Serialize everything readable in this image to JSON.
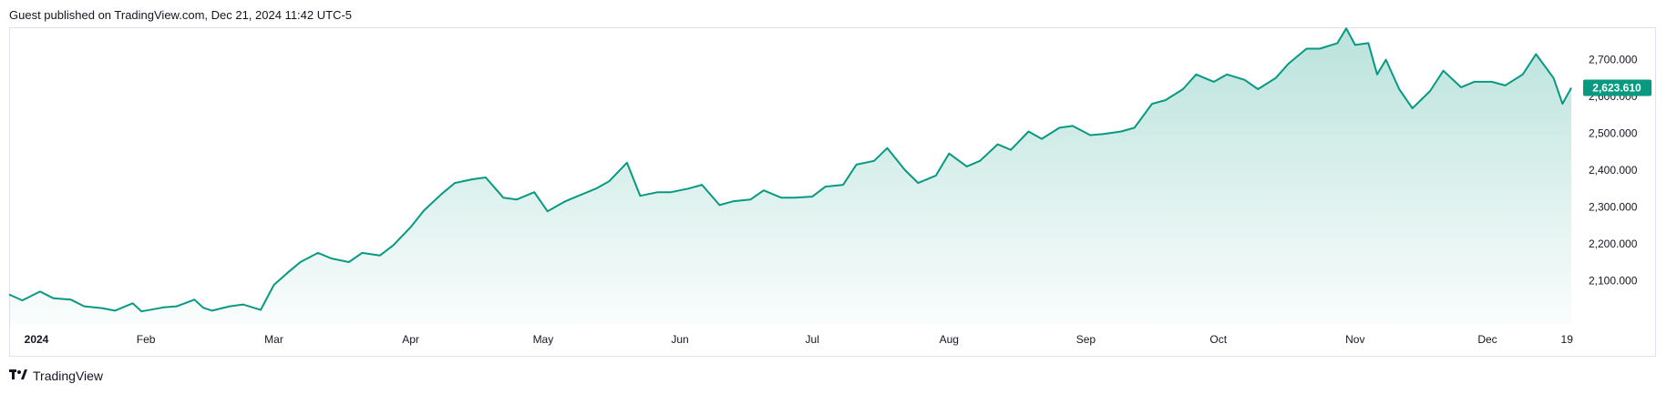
{
  "header": {
    "published_text": "Guest published on TradingView.com, Dec 21, 2024 11:42 UTC-5"
  },
  "footer": {
    "brand": "TradingView",
    "logo_icon": "tradingview-logo-icon"
  },
  "colors": {
    "line": "#089981",
    "area_top": "#089981",
    "price_tag_bg": "#089981",
    "frame": "#e0e3eb"
  },
  "last_price_label": "2,623.610",
  "chart_data": {
    "type": "area",
    "x_ticks": [
      {
        "label": "2024",
        "date": "2024-01-01",
        "bold": true
      },
      {
        "label": "Feb",
        "date": "2024-02-01"
      },
      {
        "label": "Mar",
        "date": "2024-03-01"
      },
      {
        "label": "Apr",
        "date": "2024-04-01"
      },
      {
        "label": "May",
        "date": "2024-05-01"
      },
      {
        "label": "Jun",
        "date": "2024-06-01"
      },
      {
        "label": "Jul",
        "date": "2024-07-01"
      },
      {
        "label": "Aug",
        "date": "2024-08-01"
      },
      {
        "label": "Sep",
        "date": "2024-09-01"
      },
      {
        "label": "Oct",
        "date": "2024-10-01"
      },
      {
        "label": "Nov",
        "date": "2024-11-01"
      },
      {
        "label": "Dec",
        "date": "2024-12-01"
      },
      {
        "label": "19",
        "date": "2024-12-19"
      }
    ],
    "y_ticks": [
      {
        "label": "2,100.000",
        "value": 2100
      },
      {
        "label": "2,200.000",
        "value": 2200
      },
      {
        "label": "2,300.000",
        "value": 2300
      },
      {
        "label": "2,400.000",
        "value": 2400
      },
      {
        "label": "2,500.000",
        "value": 2500
      },
      {
        "label": "2,600.000",
        "value": 2600
      },
      {
        "label": "2,700.000",
        "value": 2700
      }
    ],
    "x_range": [
      "2024-01-01",
      "2024-12-20"
    ],
    "ylim": [
      1982,
      2788
    ],
    "last_value": 2623.61,
    "grid": false,
    "points": [
      [
        "2024-01-01",
        2062
      ],
      [
        "2024-01-04",
        2046
      ],
      [
        "2024-01-08",
        2070
      ],
      [
        "2024-01-11",
        2052
      ],
      [
        "2024-01-15",
        2048
      ],
      [
        "2024-01-18",
        2030
      ],
      [
        "2024-01-22",
        2025
      ],
      [
        "2024-01-25",
        2018
      ],
      [
        "2024-01-29",
        2038
      ],
      [
        "2024-01-31",
        2016
      ],
      [
        "2024-02-05",
        2027
      ],
      [
        "2024-02-08",
        2030
      ],
      [
        "2024-02-12",
        2048
      ],
      [
        "2024-02-14",
        2026
      ],
      [
        "2024-02-16",
        2018
      ],
      [
        "2024-02-20",
        2030
      ],
      [
        "2024-02-23",
        2035
      ],
      [
        "2024-02-27",
        2020
      ],
      [
        "2024-03-01",
        2088
      ],
      [
        "2024-03-04",
        2120
      ],
      [
        "2024-03-07",
        2150
      ],
      [
        "2024-03-11",
        2175
      ],
      [
        "2024-03-14",
        2160
      ],
      [
        "2024-03-18",
        2150
      ],
      [
        "2024-03-21",
        2175
      ],
      [
        "2024-03-25",
        2168
      ],
      [
        "2024-03-28",
        2195
      ],
      [
        "2024-04-01",
        2245
      ],
      [
        "2024-04-04",
        2290
      ],
      [
        "2024-04-08",
        2335
      ],
      [
        "2024-04-11",
        2365
      ],
      [
        "2024-04-15",
        2375
      ],
      [
        "2024-04-18",
        2380
      ],
      [
        "2024-04-22",
        2325
      ],
      [
        "2024-04-25",
        2320
      ],
      [
        "2024-04-29",
        2340
      ],
      [
        "2024-05-02",
        2288
      ],
      [
        "2024-05-06",
        2315
      ],
      [
        "2024-05-09",
        2330
      ],
      [
        "2024-05-13",
        2350
      ],
      [
        "2024-05-16",
        2370
      ],
      [
        "2024-05-20",
        2420
      ],
      [
        "2024-05-23",
        2330
      ],
      [
        "2024-05-27",
        2340
      ],
      [
        "2024-05-30",
        2340
      ],
      [
        "2024-06-03",
        2350
      ],
      [
        "2024-06-06",
        2360
      ],
      [
        "2024-06-10",
        2305
      ],
      [
        "2024-06-13",
        2315
      ],
      [
        "2024-06-17",
        2320
      ],
      [
        "2024-06-20",
        2345
      ],
      [
        "2024-06-24",
        2325
      ],
      [
        "2024-06-27",
        2325
      ],
      [
        "2024-07-01",
        2328
      ],
      [
        "2024-07-04",
        2355
      ],
      [
        "2024-07-08",
        2360
      ],
      [
        "2024-07-11",
        2415
      ],
      [
        "2024-07-15",
        2425
      ],
      [
        "2024-07-18",
        2460
      ],
      [
        "2024-07-22",
        2400
      ],
      [
        "2024-07-25",
        2365
      ],
      [
        "2024-07-29",
        2385
      ],
      [
        "2024-08-01",
        2445
      ],
      [
        "2024-08-05",
        2410
      ],
      [
        "2024-08-08",
        2425
      ],
      [
        "2024-08-12",
        2470
      ],
      [
        "2024-08-15",
        2455
      ],
      [
        "2024-08-19",
        2505
      ],
      [
        "2024-08-22",
        2485
      ],
      [
        "2024-08-26",
        2515
      ],
      [
        "2024-08-29",
        2520
      ],
      [
        "2024-09-02",
        2495
      ],
      [
        "2024-09-05",
        2498
      ],
      [
        "2024-09-09",
        2505
      ],
      [
        "2024-09-12",
        2515
      ],
      [
        "2024-09-16",
        2580
      ],
      [
        "2024-09-19",
        2590
      ],
      [
        "2024-09-23",
        2620
      ],
      [
        "2024-09-26",
        2660
      ],
      [
        "2024-09-30",
        2640
      ],
      [
        "2024-10-03",
        2660
      ],
      [
        "2024-10-07",
        2645
      ],
      [
        "2024-10-10",
        2620
      ],
      [
        "2024-10-14",
        2650
      ],
      [
        "2024-10-17",
        2690
      ],
      [
        "2024-10-21",
        2730
      ],
      [
        "2024-10-24",
        2730
      ],
      [
        "2024-10-28",
        2745
      ],
      [
        "2024-10-30",
        2785
      ],
      [
        "2024-11-01",
        2740
      ],
      [
        "2024-11-04",
        2745
      ],
      [
        "2024-11-06",
        2660
      ],
      [
        "2024-11-08",
        2700
      ],
      [
        "2024-11-11",
        2620
      ],
      [
        "2024-11-14",
        2568
      ],
      [
        "2024-11-18",
        2615
      ],
      [
        "2024-11-21",
        2670
      ],
      [
        "2024-11-25",
        2625
      ],
      [
        "2024-11-28",
        2640
      ],
      [
        "2024-12-02",
        2640
      ],
      [
        "2024-12-05",
        2630
      ],
      [
        "2024-12-09",
        2660
      ],
      [
        "2024-12-12",
        2715
      ],
      [
        "2024-12-16",
        2650
      ],
      [
        "2024-12-18",
        2580
      ],
      [
        "2024-12-20",
        2623.61
      ]
    ]
  }
}
